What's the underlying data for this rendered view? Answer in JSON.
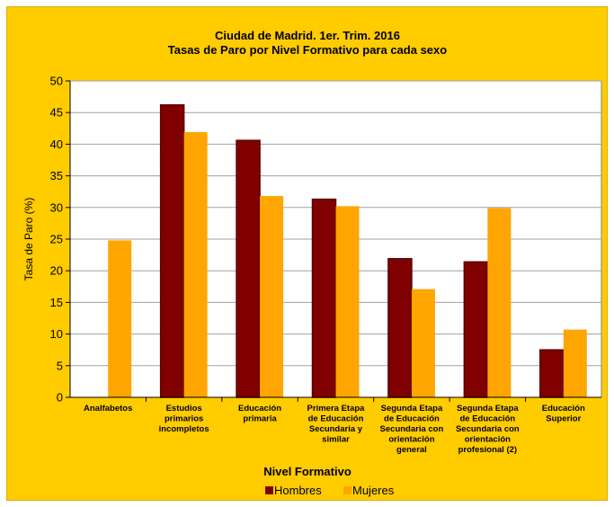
{
  "colors": {
    "background": "#ffcc00",
    "plot_background": "#ffffff",
    "hombres": "#800000",
    "hombres_edge": "#5a0000",
    "mujeres": "#ffa500",
    "gridline": "#a0a0a0"
  },
  "chart_data": {
    "type": "bar",
    "title": [
      "Ciudad de Madrid. 1er. Trim. 2016",
      "Tasas de Paro por Nivel Formativo para cada sexo"
    ],
    "xlabel": "Nivel Formativo",
    "ylabel": "Tasa de Paro (%)",
    "ylim": [
      0,
      50
    ],
    "yticks": [
      0,
      5,
      10,
      15,
      20,
      25,
      30,
      35,
      40,
      45,
      50
    ],
    "grid": true,
    "legend_position": "bottom",
    "categories": [
      [
        "Analfabetos"
      ],
      [
        "Estudios",
        "primarios",
        "incompletos"
      ],
      [
        "Educación",
        "primaria"
      ],
      [
        "Primera Etapa",
        "de Educación",
        "Secundaria y",
        "similar"
      ],
      [
        "Segunda Etapa",
        "de Educación",
        "Secundaria con",
        "orientación",
        "general"
      ],
      [
        "Segunda Etapa",
        "de Educación",
        "Secundaria con",
        "orientación",
        "profesional (2)"
      ],
      [
        "Educación",
        "Superior"
      ]
    ],
    "series": [
      {
        "name": "Hombres",
        "values": [
          0,
          46.2,
          40.6,
          31.3,
          21.9,
          21.4,
          7.5
        ]
      },
      {
        "name": "Mujeres",
        "values": [
          24.8,
          41.9,
          31.8,
          30.2,
          17.1,
          29.9,
          10.7
        ]
      }
    ]
  }
}
